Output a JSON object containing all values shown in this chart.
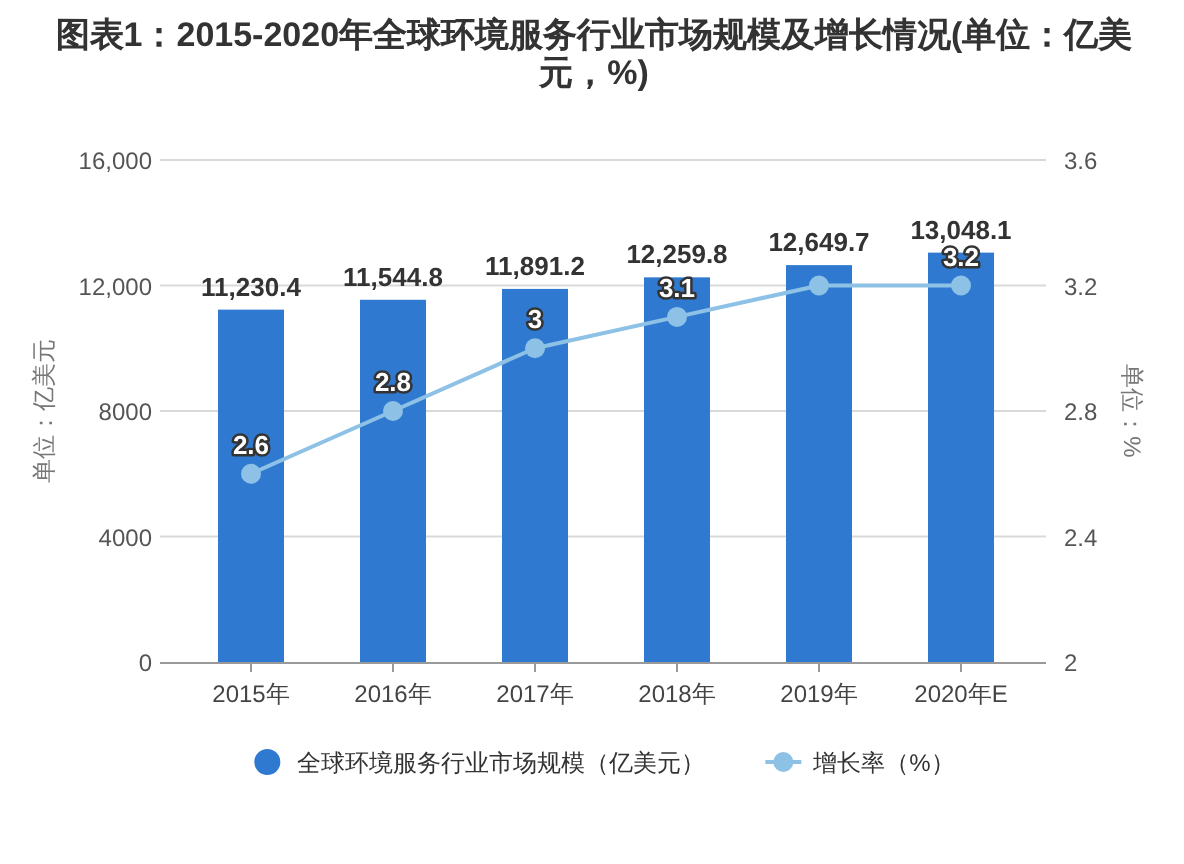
{
  "chart_data": {
    "type": "bar",
    "title": "图表1：2015-2020年全球环境服务行业市场规模及增长情况(单位：亿美元，%)",
    "ylabel": "单位：亿美元",
    "y2label": "单位：%",
    "categories": [
      "2015年",
      "2016年",
      "2017年",
      "2018年",
      "2019年",
      "2020年E"
    ],
    "series": [
      {
        "name": "全球环境服务行业市场规模（亿美元）",
        "color": "#2f7ad0",
        "values": [
          11230.4,
          11544.8,
          11891.2,
          12259.8,
          12649.7,
          13048.1
        ],
        "value_labels": [
          "11,230.4",
          "11,544.8",
          "11,891.2",
          "12,259.8",
          "12,649.7",
          "13,048.1"
        ]
      },
      {
        "name": "增长率（%）",
        "type": "line",
        "axis": "y2",
        "color": "#8dc1e5",
        "marker": "circle",
        "values": [
          2.6,
          2.8,
          3,
          3.1,
          3.2,
          3.2
        ],
        "value_labels": [
          "2.6",
          "2.8",
          "3",
          "3.1",
          null,
          "3.2"
        ]
      }
    ],
    "ylim": [
      0,
      16000
    ],
    "yticks": [
      0,
      4000,
      8000,
      {
        "value": 12000,
        "label": "12,000"
      },
      {
        "value": 16000,
        "label": "16,000"
      }
    ],
    "y2lim": [
      2,
      3.6
    ],
    "y2ticks": [
      2,
      2.4,
      2.8,
      3.2,
      3.6
    ],
    "grid": "y",
    "legend": "bottom"
  }
}
